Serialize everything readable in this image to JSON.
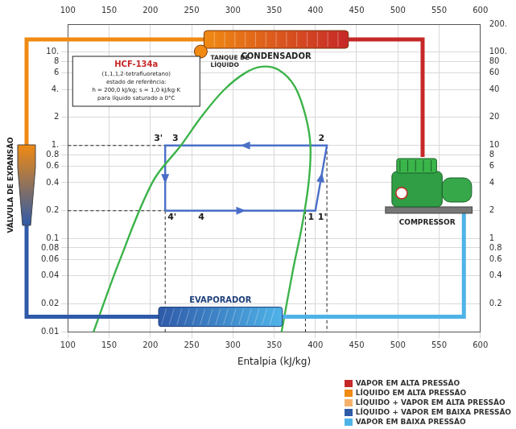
{
  "chart_data": {
    "type": "line",
    "x_label": "Entalpia (kJ/kg)",
    "xlim": [
      100,
      600
    ],
    "xticks": [
      100,
      150,
      200,
      250,
      300,
      350,
      400,
      450,
      500,
      550,
      600
    ],
    "log": "y",
    "ylim": [
      0.01,
      20
    ],
    "yticks": [
      0.01,
      0.02,
      0.04,
      0.06,
      0.08,
      0.1,
      0.2,
      0.4,
      0.6,
      0.8,
      {
        "value": 1,
        "label": "1."
      },
      2,
      {
        "value": 4,
        "label": "4."
      },
      6,
      8,
      {
        "value": 10,
        "label": "10."
      }
    ],
    "y2lim": [
      0.1,
      200
    ],
    "y2ticks": [
      0.2,
      0.4,
      0.6,
      0.8,
      1,
      2,
      4,
      6,
      8,
      10,
      20,
      40,
      60,
      80,
      {
        "value": 100,
        "label": "100."
      },
      {
        "value": 200,
        "label": "200."
      }
    ],
    "grid": true,
    "series": [
      {
        "color": "#3cb34a",
        "line_style": "solid",
        "x": [
          131,
          162,
          203,
          237,
          263,
          290,
          315,
          335,
          355,
          375,
          388,
          394,
          392,
          384,
          373,
          359
        ],
        "values": [
          0.01,
          0.056,
          0.41,
          1.0,
          2.1,
          4.0,
          6.0,
          7.0,
          6.5,
          4.3,
          2.1,
          1.0,
          0.41,
          0.14,
          0.047,
          0.01
        ]
      },
      {
        "color": "#4a6fc8",
        "line_style": "solid",
        "marker": "arrow",
        "x": [
          218,
          400,
          414,
          218,
          218
        ],
        "values": [
          0.2,
          0.2,
          1,
          1,
          0.2
        ]
      },
      {
        "color": "#222222",
        "line_style": "dashed",
        "x": [
          100,
          218
        ],
        "values": [
          1,
          1
        ]
      },
      {
        "color": "#222222",
        "line_style": "dashed",
        "x": [
          100,
          218
        ],
        "values": [
          0.2,
          0.2
        ]
      },
      {
        "color": "#222222",
        "line_style": "dashed",
        "x": [
          218,
          218
        ],
        "values": [
          0.2,
          0.01
        ]
      },
      {
        "color": "#222222",
        "line_style": "dashed",
        "x": [
          388,
          388
        ],
        "values": [
          0.2,
          0.01
        ]
      },
      {
        "color": "#222222",
        "line_style": "dashed",
        "x": [
          414,
          414
        ],
        "values": [
          1,
          0.01
        ]
      }
    ],
    "points": [
      {
        "label": "3'",
        "x": 218,
        "y": 1
      },
      {
        "label": "3",
        "x": 237,
        "y": 1
      },
      {
        "label": "2",
        "x": 414,
        "y": 1
      },
      {
        "label": "4'",
        "x": 218,
        "y": 0.2
      },
      {
        "label": "4",
        "x": 255,
        "y": 0.2
      },
      {
        "label": "1",
        "x": 388,
        "y": 0.2
      },
      {
        "label": "1'",
        "x": 400,
        "y": 0.2
      }
    ]
  },
  "diagram": {
    "info_box": {
      "title": "HCF-134a",
      "lines": [
        "(1,1,1,2-tetrafluoretano)",
        "estado de referência:",
        "h = 200,0 kJ/kg; s = 1,0 kJ/kg·K",
        "para líquido saturado a 0°C"
      ]
    },
    "condenser": "CONDENSADOR",
    "tank": "TANQUE DE LÍQUIDO",
    "valve": "VÁLVULA DE EXPANSÃO",
    "evaporator": "EVAPORADOR",
    "compressor": "COMPRESSOR",
    "legend": [
      {
        "label": "VAPOR EM ALTA PRESSÃO",
        "color": "#c62828"
      },
      {
        "label": "LÍQUIDO EM ALTA PRESSÃO",
        "color": "#f08a12"
      },
      {
        "label": "LÍQUIDO + VAPOR EM ALTA PRESSÃO",
        "color": "#f6b26b"
      },
      {
        "label": "LÍQUIDO + VAPOR EM BAIXA PRESSÃO",
        "color": "#2e5aa8"
      },
      {
        "label": "VAPOR EM BAIXA PRESSÃO",
        "color": "#4fb3e8"
      }
    ]
  }
}
